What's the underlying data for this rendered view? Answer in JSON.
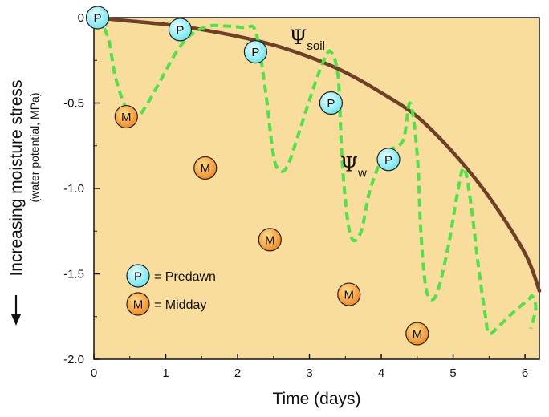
{
  "colors": {
    "background": "#ffffff",
    "plot_area": "#f8dd9d",
    "soil_curve": "#6e4028",
    "plant_curve": "#4fe34a",
    "predawn_fill": "#6fe6ef",
    "midday_fill": "#f08a28",
    "axis": "#111111"
  },
  "chart_data": {
    "type": "line",
    "xlabel": "Time (days)",
    "ylabel": "Increasing moisture stress",
    "ylabel_sub": "(water potential, MPa)",
    "xlim": [
      0,
      6.2
    ],
    "ylim": [
      -2.0,
      0
    ],
    "xticks": [
      0,
      1,
      2,
      3,
      4,
      5,
      6
    ],
    "xtick_labels": [
      "0",
      "1",
      "2",
      "3",
      "4",
      "5",
      "6"
    ],
    "yticks": [
      0,
      -0.5,
      -1.0,
      -1.5,
      -2.0
    ],
    "ytick_labels": [
      "0",
      "-0.5",
      "-1.0",
      "-1.5",
      "-2.0"
    ],
    "grid": false,
    "series": [
      {
        "label_main": "Ψ",
        "label_sub": "soil",
        "style": "solid",
        "x": [
          0,
          0.5,
          1.0,
          1.5,
          2.0,
          2.5,
          3.0,
          3.5,
          4.0,
          4.5,
          5.0,
          5.5,
          6.0,
          6.2
        ],
        "y": [
          0,
          -0.02,
          -0.04,
          -0.07,
          -0.11,
          -0.16,
          -0.23,
          -0.32,
          -0.44,
          -0.58,
          -0.79,
          -1.05,
          -1.38,
          -1.6
        ]
      },
      {
        "label_main": "Ψ",
        "label_sub": "w",
        "style": "dashed",
        "x": [
          0.05,
          0.2,
          0.3,
          0.45,
          0.6,
          0.75,
          0.95,
          1.15,
          1.35,
          1.6,
          1.85,
          2.1,
          2.25,
          2.38,
          2.48,
          2.55,
          2.68,
          2.85,
          3.05,
          3.2,
          3.3,
          3.4,
          3.45,
          3.52,
          3.6,
          3.72,
          3.85,
          4.05,
          4.3,
          4.4,
          4.5,
          4.55,
          4.62,
          4.72,
          4.82,
          4.95,
          5.05,
          5.15,
          5.25,
          5.35,
          5.45,
          5.5,
          5.65,
          5.85,
          6.05,
          6.1,
          6.15,
          6.08
        ],
        "y": [
          0,
          -0.12,
          -0.35,
          -0.53,
          -0.58,
          -0.5,
          -0.35,
          -0.2,
          -0.1,
          -0.05,
          -0.05,
          -0.06,
          -0.08,
          -0.4,
          -0.75,
          -0.88,
          -0.88,
          -0.68,
          -0.42,
          -0.25,
          -0.2,
          -0.35,
          -0.8,
          -1.15,
          -1.3,
          -1.25,
          -1.0,
          -0.8,
          -0.72,
          -0.5,
          -0.8,
          -1.25,
          -1.58,
          -1.65,
          -1.55,
          -1.3,
          -1.05,
          -0.88,
          -1.1,
          -1.45,
          -1.75,
          -1.85,
          -1.8,
          -1.72,
          -1.65,
          -1.63,
          -1.7,
          -1.82
        ]
      }
    ],
    "markers": [
      {
        "type": "P",
        "x": 0.05,
        "y": 0.0
      },
      {
        "type": "M",
        "x": 0.45,
        "y": -0.58
      },
      {
        "type": "P",
        "x": 1.2,
        "y": -0.07
      },
      {
        "type": "M",
        "x": 1.55,
        "y": -0.88
      },
      {
        "type": "P",
        "x": 2.25,
        "y": -0.2
      },
      {
        "type": "M",
        "x": 2.45,
        "y": -1.3
      },
      {
        "type": "P",
        "x": 3.3,
        "y": -0.5
      },
      {
        "type": "M",
        "x": 3.55,
        "y": -1.62
      },
      {
        "type": "P",
        "x": 4.1,
        "y": -0.83
      },
      {
        "type": "M",
        "x": 4.5,
        "y": -1.85
      }
    ],
    "legend": {
      "placement": "lower-left",
      "items": [
        {
          "symbol": "P",
          "label": "= Predawn"
        },
        {
          "symbol": "M",
          "label": "= Midday"
        }
      ]
    }
  }
}
